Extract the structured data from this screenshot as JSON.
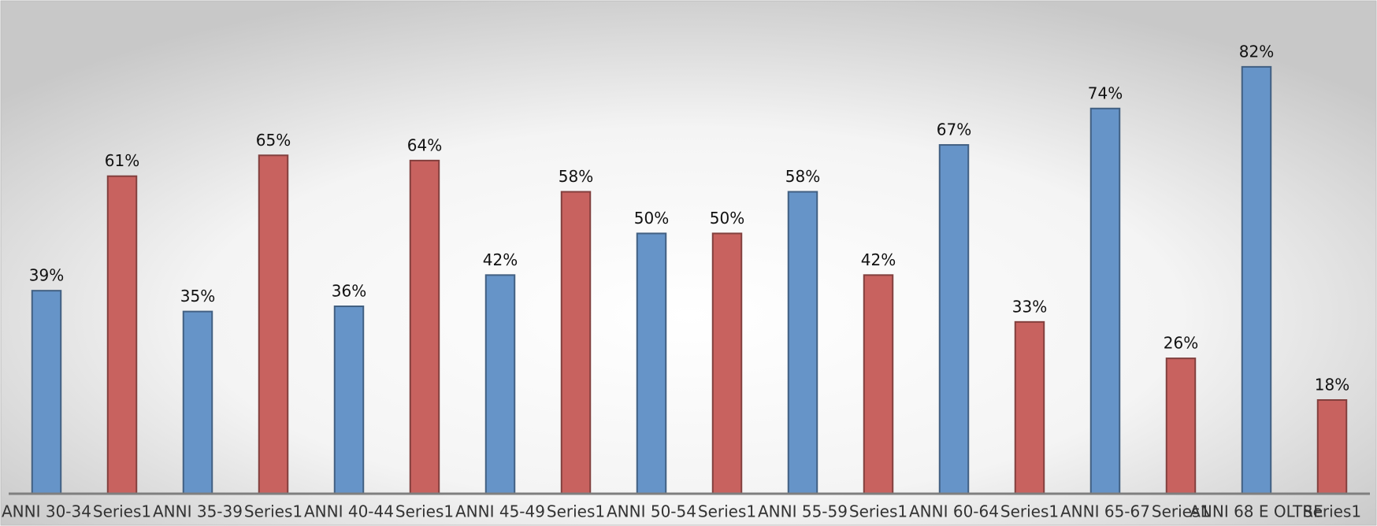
{
  "chart_data": {
    "type": "bar",
    "categories": [
      "ANNI 30-34",
      "Series1",
      "ANNI 35-39",
      "Series1",
      "ANNI 40-44",
      "Series1",
      "ANNI 45-49",
      "Series1",
      "ANNI 50-54",
      "Series1",
      "ANNI 55-59",
      "Series1",
      "ANNI 60-64",
      "Series1",
      "ANNI 65-67",
      "Series1",
      "ANNI 68 E OLTRE",
      "Series1"
    ],
    "values": [
      39,
      61,
      35,
      65,
      36,
      64,
      42,
      58,
      50,
      50,
      58,
      42,
      67,
      33,
      74,
      26,
      82,
      18
    ],
    "value_labels": [
      "39%",
      "61%",
      "35%",
      "65%",
      "36%",
      "64%",
      "42%",
      "58%",
      "50%",
      "50%",
      "58%",
      "42%",
      "67%",
      "33%",
      "74%",
      "26%",
      "82%",
      "18%"
    ],
    "colors": [
      "#6694c8",
      "#c8625f",
      "#6694c8",
      "#c8625f",
      "#6694c8",
      "#c8625f",
      "#6694c8",
      "#c8625f",
      "#6694c8",
      "#c8625f",
      "#6694c8",
      "#c8625f",
      "#6694c8",
      "#c8625f",
      "#6694c8",
      "#c8625f",
      "#6694c8",
      "#c8625f"
    ],
    "ylim": [
      0,
      90
    ]
  }
}
